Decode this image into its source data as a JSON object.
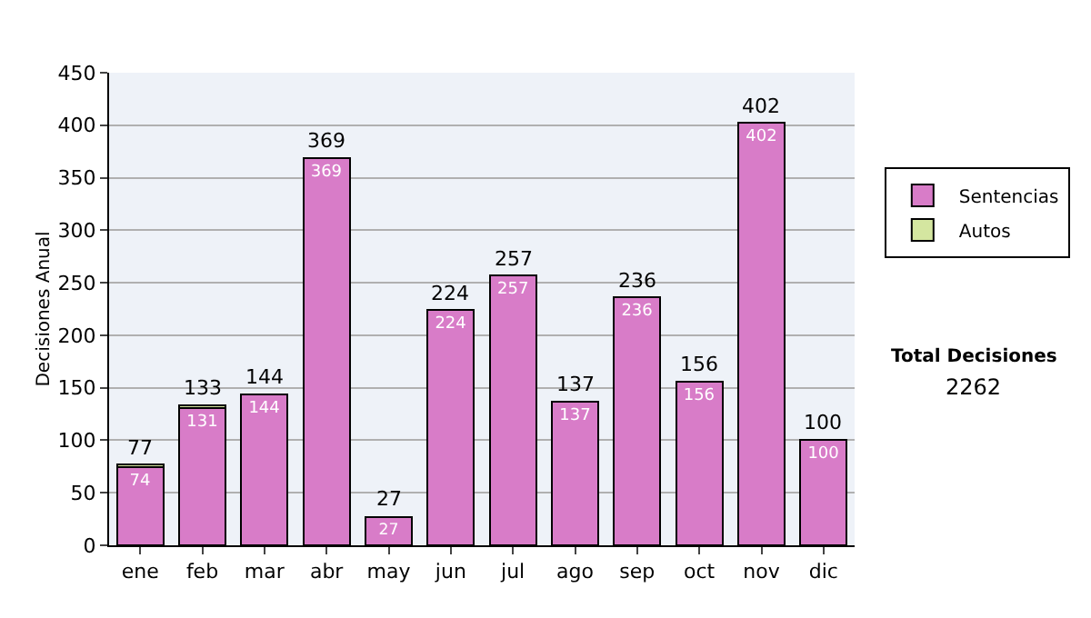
{
  "chart_data": {
    "type": "bar",
    "stacked": true,
    "ylabel": "Decisiones Anual",
    "categories": [
      "ene",
      "feb",
      "mar",
      "abr",
      "may",
      "jun",
      "jul",
      "ago",
      "sep",
      "oct",
      "nov",
      "dic"
    ],
    "series": [
      {
        "name": "Sentencias",
        "color": "#d87cc8",
        "values": [
          74,
          131,
          144,
          369,
          27,
          224,
          257,
          137,
          236,
          156,
          402,
          100
        ],
        "value_labels": [
          "74",
          "131",
          "144",
          "369",
          "27",
          "224",
          "257",
          "137",
          "236",
          "156",
          "402",
          "100"
        ]
      },
      {
        "name": "Autos",
        "color": "#d4e6a0",
        "values": [
          3,
          2,
          0,
          0,
          0,
          0,
          0,
          0,
          0,
          0,
          0,
          0
        ]
      }
    ],
    "totals": [
      "77",
      "133",
      "144",
      "369",
      "27",
      "224",
      "257",
      "137",
      "236",
      "156",
      "402",
      "100"
    ],
    "ylim": [
      0,
      450
    ],
    "yticks": [
      0,
      50,
      100,
      150,
      200,
      250,
      300,
      350,
      400,
      450
    ],
    "grid": "y",
    "legend": "right",
    "annotations": [
      "Total Decisiones",
      "2262"
    ]
  }
}
